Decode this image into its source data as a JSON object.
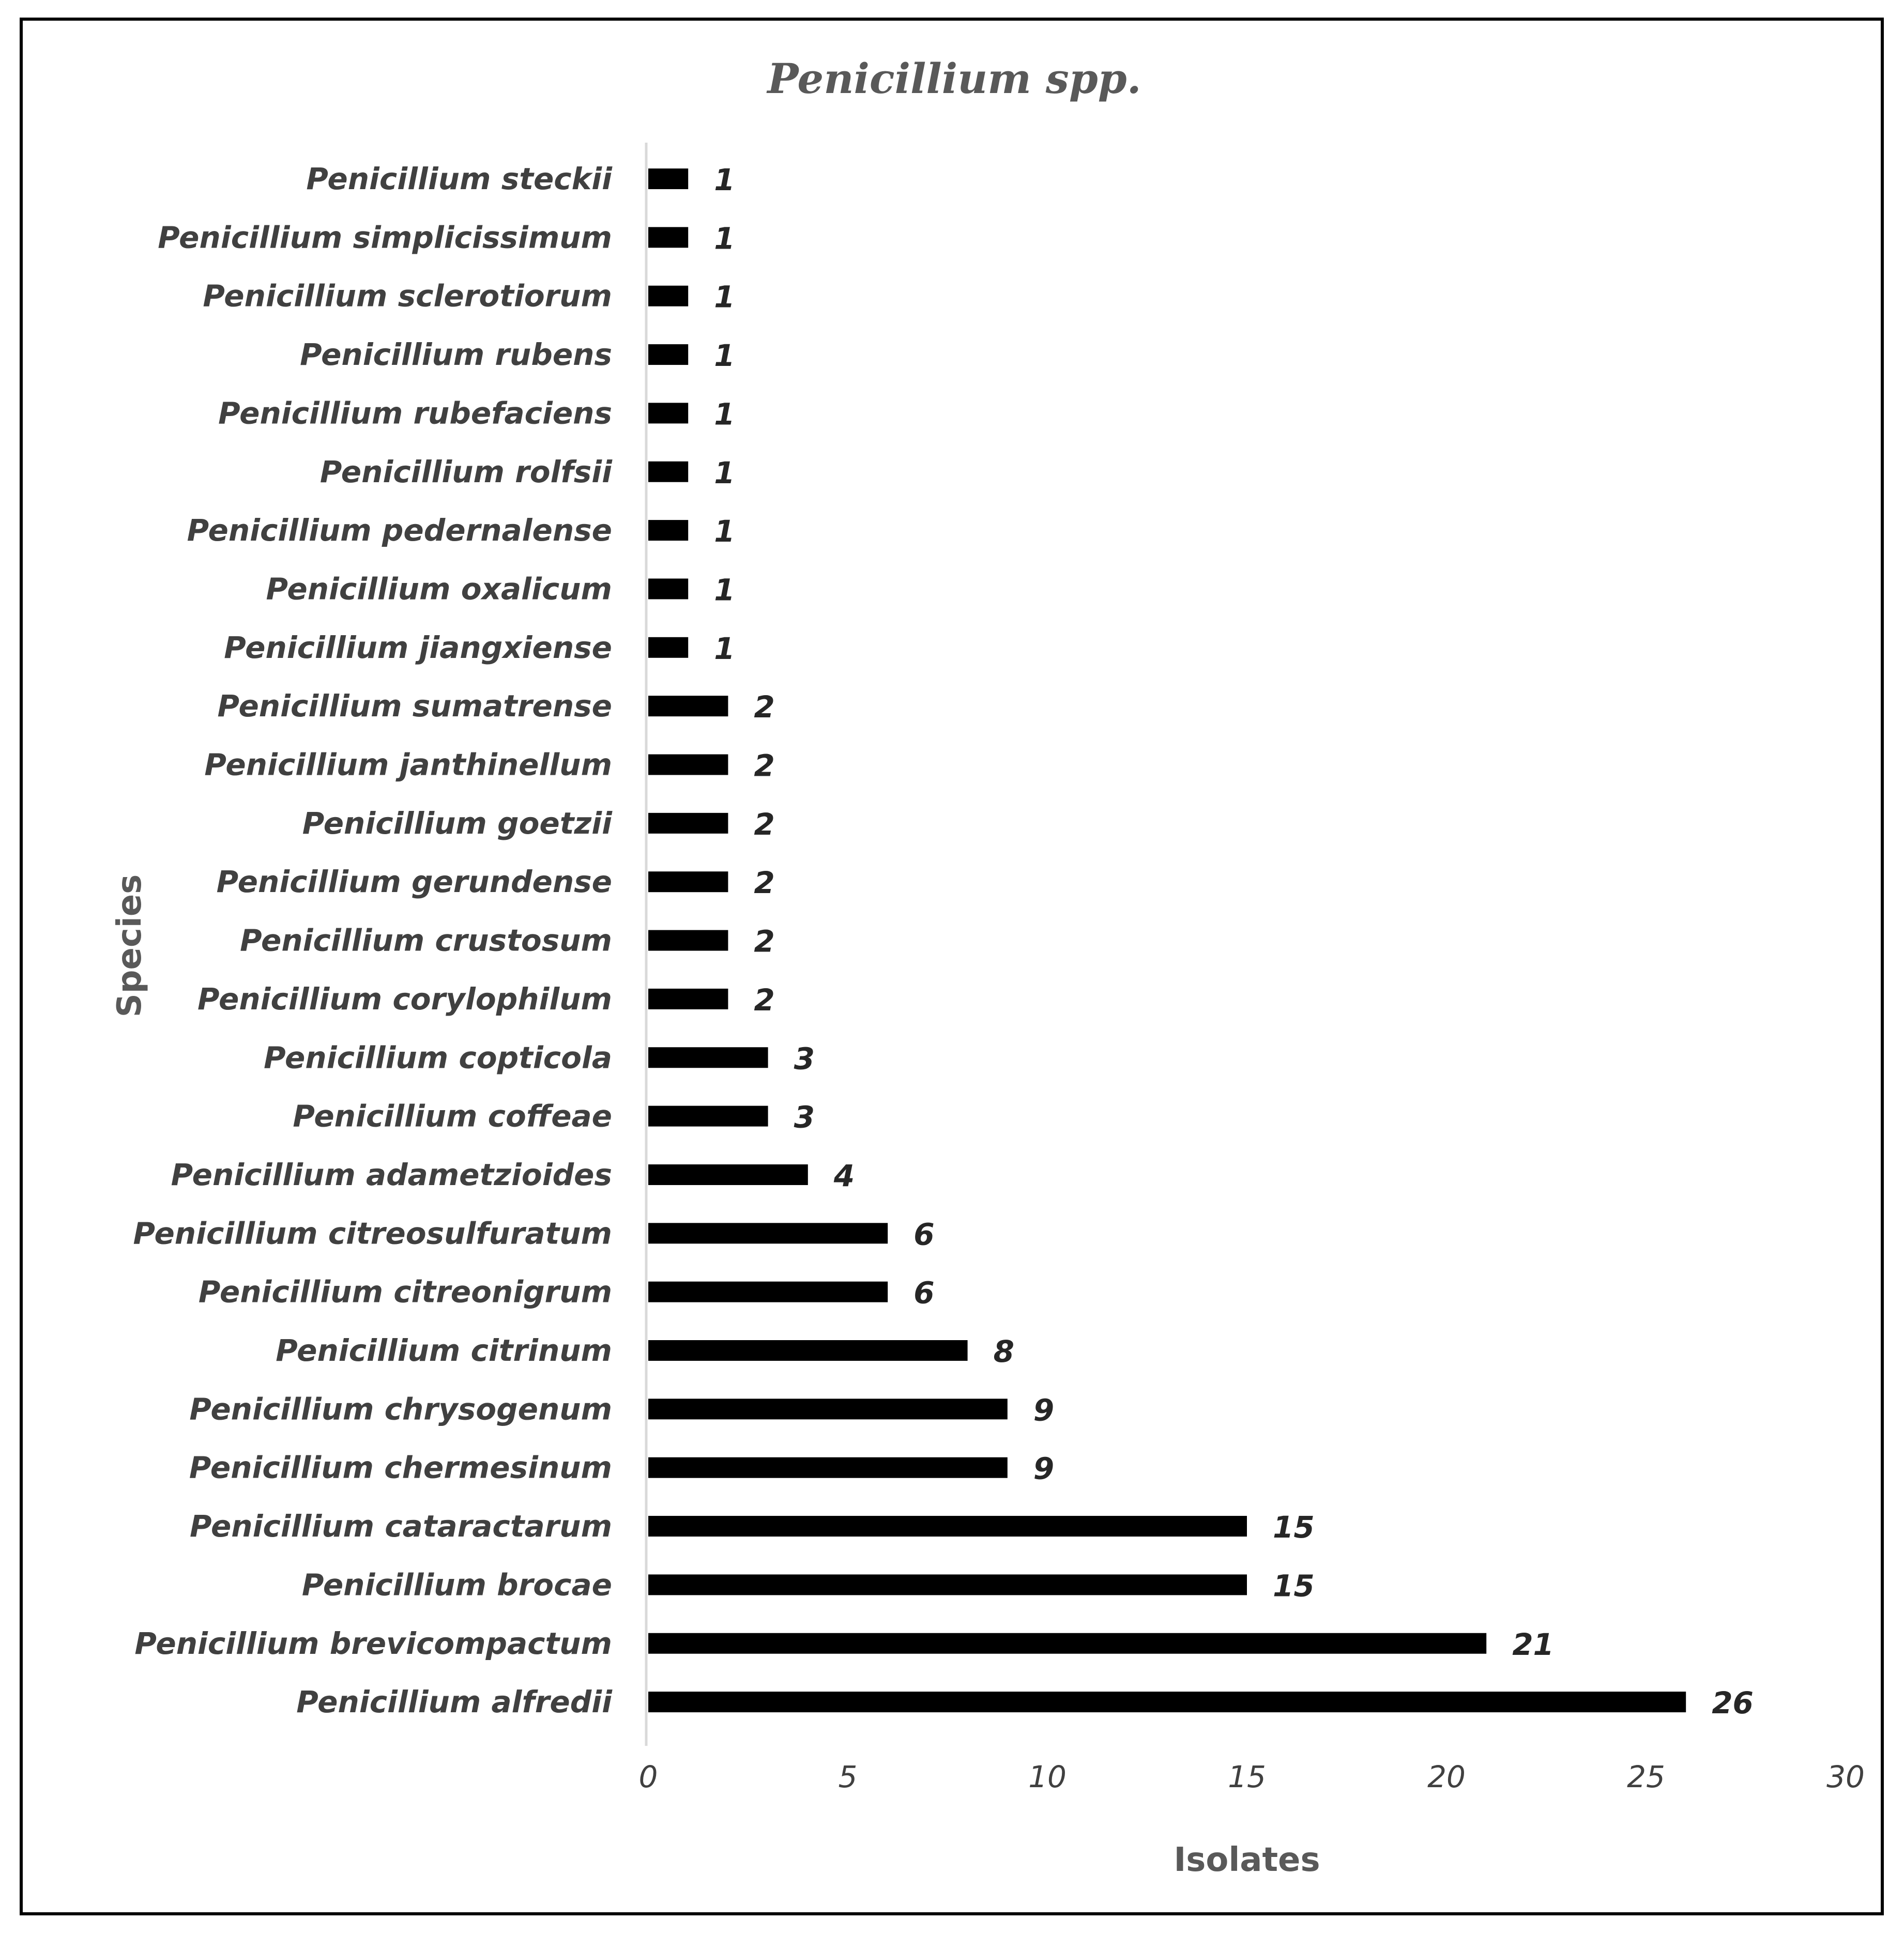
{
  "chart_data": {
    "type": "bar",
    "orientation": "horizontal",
    "title": "Penicillium spp.",
    "xlabel": "Isolates",
    "ylabel": "Species",
    "xlim": [
      0,
      30
    ],
    "xticks": [
      "0",
      "5",
      "10",
      "15",
      "20",
      "25",
      "30"
    ],
    "grid": false,
    "legend": "none",
    "bar_color": "#000000",
    "categories": [
      "Penicillium steckii",
      "Penicillium simplicissimum",
      "Penicillium sclerotiorum",
      "Penicillium rubens",
      "Penicillium rubefaciens",
      "Penicillium rolfsii",
      "Penicillium pedernalense",
      "Penicillium oxalicum",
      "Penicillium jiangxiense",
      "Penicillium sumatrense",
      "Penicillium janthinellum",
      "Penicillium goetzii",
      "Penicillium gerundense",
      "Penicillium crustosum",
      "Penicillium corylophilum",
      "Penicillium copticola",
      "Penicillium coffeae",
      "Penicillium adametzioides",
      "Penicillium citreosulfuratum",
      "Penicillium citreonigrum",
      "Penicillium citrinum",
      "Penicillium chrysogenum",
      "Penicillium chermesinum",
      "Penicillium cataractarum",
      "Penicillium brocae",
      "Penicillium brevicompactum",
      "Penicillium alfredii"
    ],
    "values": [
      1,
      1,
      1,
      1,
      1,
      1,
      1,
      1,
      1,
      2,
      2,
      2,
      2,
      2,
      2,
      3,
      3,
      4,
      6,
      6,
      8,
      9,
      9,
      15,
      15,
      21,
      26
    ],
    "value_labels": [
      "1",
      "1",
      "1",
      "1",
      "1",
      "1",
      "1",
      "1",
      "1",
      "2",
      "2",
      "2",
      "2",
      "2",
      "2",
      "3",
      "3",
      "4",
      "6",
      "6",
      "8",
      "9",
      "9",
      "15",
      "15",
      "21",
      "26"
    ]
  }
}
